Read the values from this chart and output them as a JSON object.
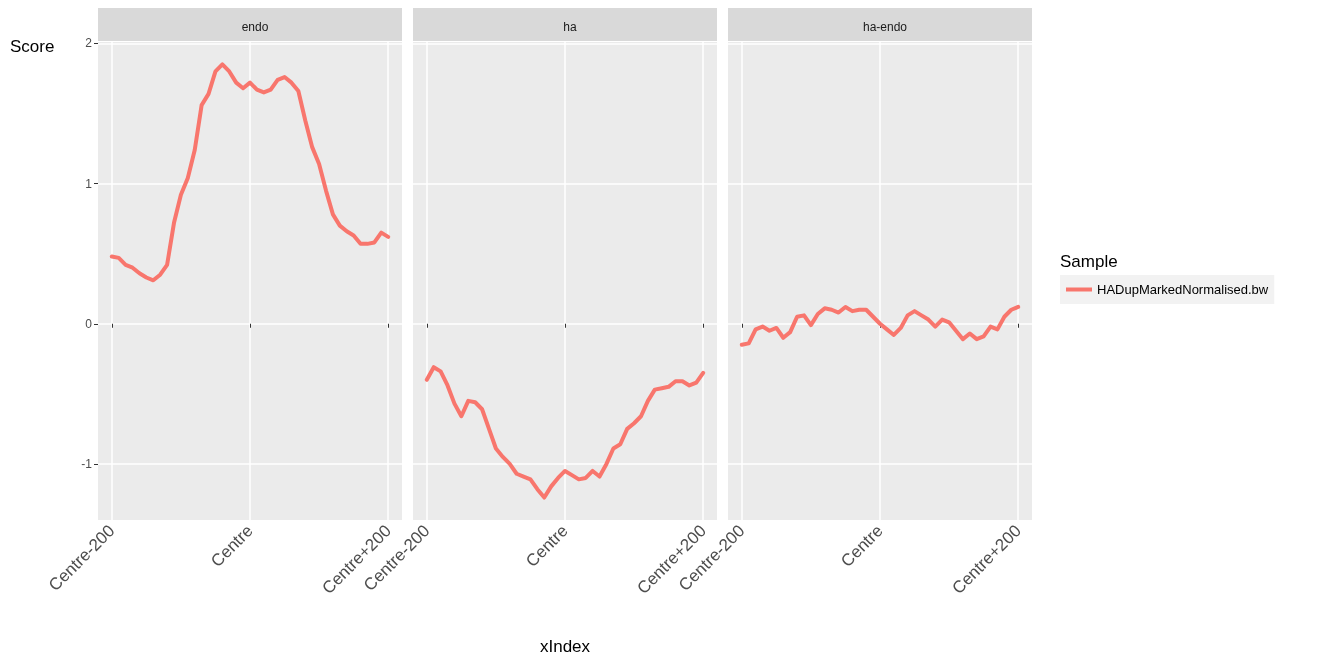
{
  "chart_data": [
    {
      "type": "line",
      "title": "endo",
      "ylabel": "Score",
      "categories": [
        null,
        null,
        "Centre-200",
        null,
        null,
        null,
        null,
        null,
        null,
        null,
        null,
        null,
        null,
        null,
        null,
        null,
        null,
        null,
        null,
        null,
        null,
        null,
        "Centre",
        null,
        null,
        null,
        null,
        null,
        null,
        null,
        null,
        null,
        null,
        null,
        null,
        null,
        null,
        null,
        null,
        null,
        null,
        null,
        "Centre+200",
        null,
        null
      ],
      "series": [
        {
          "color": "#f8766d",
          "values": [
            null,
            null,
            0.48,
            0.47,
            0.42,
            0.4,
            0.36,
            0.33,
            0.31,
            0.35,
            0.42,
            0.72,
            0.92,
            1.04,
            1.24,
            1.56,
            1.64,
            1.8,
            1.85,
            1.8,
            1.72,
            1.68,
            1.72,
            1.67,
            1.65,
            1.67,
            1.74,
            1.76,
            1.72,
            1.66,
            1.45,
            1.26,
            1.14,
            0.95,
            0.78,
            0.7,
            0.66,
            0.63,
            0.57,
            0.57,
            0.58,
            0.65,
            0.62,
            null,
            null
          ]
        }
      ],
      "ylim": [
        -1.4,
        2.01
      ],
      "yticks": [
        -1,
        0,
        1,
        2
      ],
      "grid": true,
      "line_style": "solid",
      "marker": "none"
    },
    {
      "type": "line",
      "title": "ha",
      "xlabel": "xIndex",
      "categories": [
        null,
        null,
        "Centre-200",
        null,
        null,
        null,
        null,
        null,
        null,
        null,
        null,
        null,
        null,
        null,
        null,
        null,
        null,
        null,
        null,
        null,
        null,
        null,
        "Centre",
        null,
        null,
        null,
        null,
        null,
        null,
        null,
        null,
        null,
        null,
        null,
        null,
        null,
        null,
        null,
        null,
        null,
        null,
        null,
        "Centre+200",
        null,
        null
      ],
      "series": [
        {
          "color": "#f8766d",
          "values": [
            null,
            null,
            -0.4,
            -0.31,
            -0.34,
            -0.44,
            -0.57,
            -0.66,
            -0.55,
            -0.56,
            -0.61,
            -0.75,
            -0.89,
            -0.95,
            -1.0,
            -1.07,
            -1.09,
            -1.11,
            -1.18,
            -1.24,
            -1.16,
            -1.1,
            -1.05,
            -1.08,
            -1.11,
            -1.1,
            -1.05,
            -1.09,
            -1.0,
            -0.89,
            -0.86,
            -0.75,
            -0.71,
            -0.66,
            -0.55,
            -0.47,
            -0.46,
            -0.45,
            -0.41,
            -0.41,
            -0.44,
            -0.42,
            -0.35,
            null,
            null
          ]
        }
      ],
      "ylim": [
        -1.4,
        2.01
      ],
      "yticks": [
        -1,
        0,
        1,
        2
      ],
      "grid": true,
      "tick_labels": "x",
      "line_style": "solid",
      "marker": "none"
    },
    {
      "type": "line",
      "title": "ha-endo",
      "legend_title": "Sample",
      "legend": "right",
      "categories": [
        null,
        null,
        "Centre-200",
        null,
        null,
        null,
        null,
        null,
        null,
        null,
        null,
        null,
        null,
        null,
        null,
        null,
        null,
        null,
        null,
        null,
        null,
        null,
        "Centre",
        null,
        null,
        null,
        null,
        null,
        null,
        null,
        null,
        null,
        null,
        null,
        null,
        null,
        null,
        null,
        null,
        null,
        null,
        null,
        "Centre+200",
        null,
        null
      ],
      "series": [
        {
          "name": "HADupMarkedNormalised.bw",
          "color": "#f8766d",
          "values": [
            null,
            null,
            -0.15,
            -0.14,
            -0.04,
            -0.02,
            -0.05,
            -0.03,
            -0.1,
            -0.06,
            0.05,
            0.06,
            -0.01,
            0.07,
            0.11,
            0.1,
            0.08,
            0.12,
            0.09,
            0.1,
            0.1,
            0.05,
            0.0,
            -0.04,
            -0.08,
            -0.03,
            0.06,
            0.09,
            0.06,
            0.03,
            -0.02,
            0.03,
            0.01,
            -0.05,
            -0.11,
            -0.07,
            -0.11,
            -0.09,
            -0.02,
            -0.04,
            0.05,
            0.1,
            0.12,
            null,
            null
          ]
        }
      ],
      "ylim": [
        -1.4,
        2.01
      ],
      "yticks": [
        -1,
        0,
        1,
        2
      ],
      "grid": true,
      "tick_labels": "x",
      "line_style": "solid",
      "marker": "none"
    }
  ]
}
